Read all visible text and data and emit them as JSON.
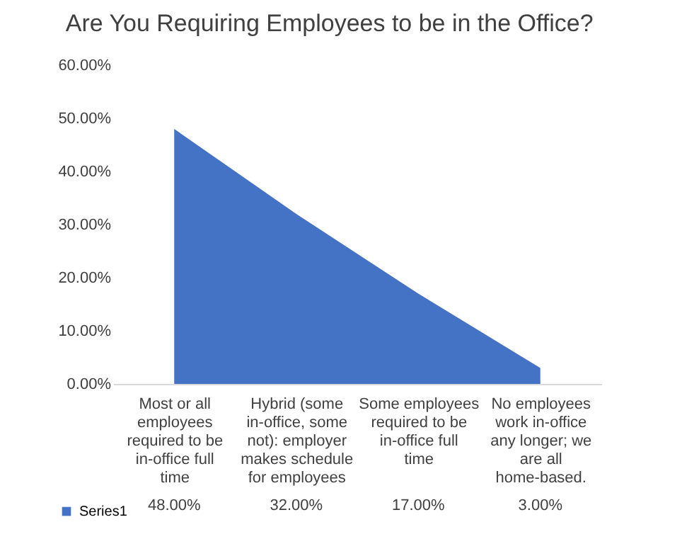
{
  "chart_data": {
    "type": "area",
    "title": "Are You Requiring Employees to be in the Office?",
    "categories": [
      "Most or all employees required to be in-office full time",
      "Hybrid (some in-office, some not): employer makes schedule for employees",
      "Some employees required to be in-office full time",
      "No employees work in-office any longer; we are all home-based."
    ],
    "series": [
      {
        "name": "Series1",
        "color": "#4472c4",
        "values": [
          48,
          32,
          17,
          3
        ],
        "value_labels": [
          "48.00%",
          "32.00%",
          "17.00%",
          "3.00%"
        ]
      }
    ],
    "ylim": [
      0,
      60
    ],
    "yticks": [
      {
        "value": 0,
        "label": "0.00%"
      },
      {
        "value": 10,
        "label": "10.00%"
      },
      {
        "value": 20,
        "label": "20.00%"
      },
      {
        "value": 30,
        "label": "30.00%"
      },
      {
        "value": 40,
        "label": "40.00%"
      },
      {
        "value": 50,
        "label": "50.00%"
      },
      {
        "value": 60,
        "label": "60.00%"
      }
    ],
    "grid": false,
    "legend": "bottom left"
  }
}
